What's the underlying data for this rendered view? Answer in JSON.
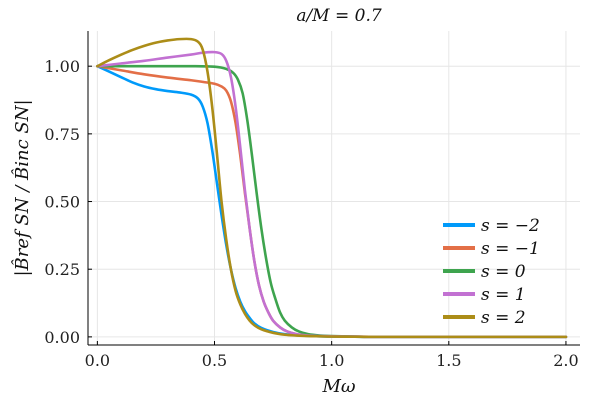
{
  "chart_data": {
    "type": "line",
    "title": "a/M = 0.7",
    "xlabel": "Mω",
    "ylabel": "|B̂ref SN / B̂inc SN|",
    "xlim": [
      -0.04,
      2.06
    ],
    "ylim": [
      -0.03,
      1.13
    ],
    "grid": true,
    "legend_position": "bottom-right",
    "x_ticks": [
      {
        "value": 0.0,
        "label": "0.0"
      },
      {
        "value": 0.5,
        "label": "0.5"
      },
      {
        "value": 1.0,
        "label": "1.0"
      },
      {
        "value": 1.5,
        "label": "1.5"
      },
      {
        "value": 2.0,
        "label": "2.0"
      }
    ],
    "y_ticks": [
      {
        "value": 0.0,
        "label": "0.00"
      },
      {
        "value": 0.25,
        "label": "0.25"
      },
      {
        "value": 0.5,
        "label": "0.50"
      },
      {
        "value": 0.75,
        "label": "0.75"
      },
      {
        "value": 1.0,
        "label": "1.00"
      }
    ],
    "series": [
      {
        "name": "s = −2",
        "color": "#009AFA",
        "x": [
          0,
          0.05,
          0.1,
          0.15,
          0.2,
          0.25,
          0.3,
          0.35,
          0.4,
          0.43,
          0.45,
          0.47,
          0.49,
          0.51,
          0.53,
          0.55,
          0.57,
          0.59,
          0.61,
          0.63,
          0.65,
          0.67,
          0.7,
          0.75,
          0.8,
          0.85,
          0.9,
          0.95,
          1.0,
          1.1,
          1.2,
          1.5,
          2.0
        ],
        "y": [
          1.0,
          0.98,
          0.96,
          0.94,
          0.925,
          0.915,
          0.908,
          0.903,
          0.895,
          0.88,
          0.85,
          0.79,
          0.69,
          0.57,
          0.45,
          0.34,
          0.25,
          0.18,
          0.13,
          0.095,
          0.07,
          0.05,
          0.033,
          0.018,
          0.01,
          0.006,
          0.004,
          0.002,
          0.001,
          0.0005,
          0.0,
          0.0,
          0.0
        ]
      },
      {
        "name": "s = −1",
        "color": "#E36F47",
        "x": [
          0,
          0.1,
          0.2,
          0.3,
          0.4,
          0.45,
          0.5,
          0.53,
          0.55,
          0.57,
          0.59,
          0.61,
          0.63,
          0.65,
          0.67,
          0.69,
          0.71,
          0.73,
          0.75,
          0.78,
          0.81,
          0.85,
          0.9,
          0.95,
          1.0,
          1.1,
          1.2,
          1.5,
          2.0
        ],
        "y": [
          1.0,
          0.985,
          0.97,
          0.958,
          0.948,
          0.942,
          0.935,
          0.925,
          0.91,
          0.87,
          0.79,
          0.67,
          0.53,
          0.4,
          0.28,
          0.19,
          0.13,
          0.09,
          0.06,
          0.035,
          0.02,
          0.01,
          0.005,
          0.003,
          0.002,
          0.001,
          0.0,
          0.0,
          0.0
        ]
      },
      {
        "name": "s = 0",
        "color": "#3EA44E",
        "x": [
          0,
          0.1,
          0.2,
          0.3,
          0.4,
          0.5,
          0.55,
          0.58,
          0.6,
          0.62,
          0.64,
          0.66,
          0.68,
          0.7,
          0.72,
          0.74,
          0.76,
          0.78,
          0.8,
          0.83,
          0.86,
          0.9,
          0.95,
          1.0,
          1.1,
          1.2,
          1.5,
          2.0
        ],
        "y": [
          1.0,
          1.0,
          1.0,
          1.0,
          1.0,
          0.998,
          0.99,
          0.975,
          0.95,
          0.9,
          0.8,
          0.67,
          0.53,
          0.4,
          0.29,
          0.2,
          0.14,
          0.09,
          0.06,
          0.035,
          0.02,
          0.01,
          0.005,
          0.003,
          0.001,
          0.0,
          0.0,
          0.0
        ]
      },
      {
        "name": "s = 1",
        "color": "#C271D2",
        "x": [
          0,
          0.1,
          0.2,
          0.3,
          0.4,
          0.45,
          0.5,
          0.53,
          0.55,
          0.57,
          0.59,
          0.61,
          0.63,
          0.65,
          0.67,
          0.69,
          0.71,
          0.73,
          0.75,
          0.78,
          0.81,
          0.85,
          0.9,
          0.95,
          1.0,
          1.1,
          1.2,
          1.5,
          2.0
        ],
        "y": [
          1.0,
          1.01,
          1.02,
          1.032,
          1.043,
          1.05,
          1.052,
          1.045,
          1.02,
          0.96,
          0.85,
          0.7,
          0.54,
          0.4,
          0.28,
          0.19,
          0.13,
          0.09,
          0.06,
          0.035,
          0.02,
          0.01,
          0.005,
          0.003,
          0.002,
          0.001,
          0.0,
          0.0,
          0.0
        ]
      },
      {
        "name": "s = 2",
        "color": "#AC8D18",
        "x": [
          0,
          0.05,
          0.1,
          0.15,
          0.2,
          0.25,
          0.3,
          0.35,
          0.4,
          0.43,
          0.45,
          0.47,
          0.49,
          0.51,
          0.53,
          0.55,
          0.57,
          0.59,
          0.61,
          0.63,
          0.65,
          0.67,
          0.7,
          0.75,
          0.8,
          0.85,
          0.9,
          0.95,
          1.0,
          1.1,
          1.2,
          1.5,
          2.0
        ],
        "y": [
          1.0,
          1.022,
          1.042,
          1.06,
          1.075,
          1.087,
          1.095,
          1.1,
          1.1,
          1.09,
          1.06,
          0.98,
          0.85,
          0.68,
          0.5,
          0.36,
          0.25,
          0.17,
          0.12,
          0.085,
          0.06,
          0.043,
          0.028,
          0.015,
          0.008,
          0.005,
          0.003,
          0.002,
          0.001,
          0.0005,
          0.0,
          0.0,
          0.0
        ]
      }
    ]
  }
}
